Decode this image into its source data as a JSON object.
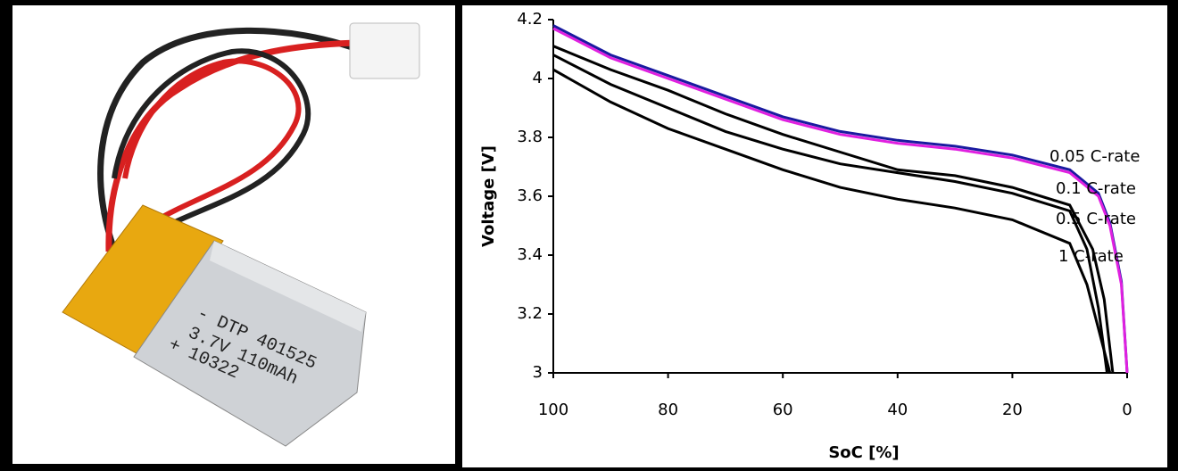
{
  "photo": {
    "battery_label": [
      "- DTP 401525",
      "3.7V 110mAh",
      "+ 10322"
    ]
  },
  "chart_data": {
    "type": "line",
    "y_label": "Voltage [V]",
    "x_label": "SoC [%]",
    "xlim": [
      100,
      0
    ],
    "ylim": [
      3,
      4.2
    ],
    "xticks": [
      100,
      80,
      60,
      40,
      20,
      0
    ],
    "yticks": [
      3,
      3.2,
      3.4,
      3.6,
      3.8,
      4,
      4.2
    ],
    "grid": false,
    "series": [
      {
        "color": "#1a1aa0",
        "x": [
          100,
          90,
          80,
          70,
          60,
          50,
          40,
          30,
          20,
          10,
          5,
          3,
          1,
          0
        ],
        "values": [
          4.18,
          4.08,
          4.01,
          3.94,
          3.87,
          3.82,
          3.79,
          3.77,
          3.74,
          3.69,
          3.61,
          3.51,
          3.31,
          3.0
        ]
      },
      {
        "name": "0.05 C-rate",
        "color": "#e020e0",
        "x": [
          100,
          90,
          80,
          70,
          60,
          50,
          40,
          30,
          20,
          10,
          5,
          3,
          1,
          0
        ],
        "values": [
          4.17,
          4.07,
          4.0,
          3.93,
          3.86,
          3.81,
          3.78,
          3.76,
          3.73,
          3.68,
          3.6,
          3.5,
          3.3,
          3.0
        ]
      },
      {
        "name": "0.1 C-rate",
        "color": "#000000",
        "x": [
          100,
          90,
          80,
          70,
          60,
          50,
          40,
          30,
          20,
          10,
          6,
          4,
          2.5
        ],
        "values": [
          4.11,
          4.03,
          3.96,
          3.88,
          3.81,
          3.75,
          3.69,
          3.67,
          3.63,
          3.57,
          3.42,
          3.25,
          3.0
        ]
      },
      {
        "name": "0.5 C-rate",
        "color": "#000000",
        "x": [
          100,
          90,
          80,
          70,
          60,
          50,
          40,
          30,
          20,
          10,
          7,
          5,
          3.5
        ],
        "values": [
          4.08,
          3.98,
          3.9,
          3.82,
          3.76,
          3.71,
          3.68,
          3.65,
          3.61,
          3.55,
          3.42,
          3.22,
          3.0
        ]
      },
      {
        "name": "1 C-rate",
        "color": "#000000",
        "x": [
          100,
          90,
          80,
          70,
          60,
          50,
          40,
          30,
          20,
          10,
          7,
          5,
          3
        ],
        "values": [
          4.03,
          3.92,
          3.83,
          3.76,
          3.69,
          3.63,
          3.59,
          3.56,
          3.52,
          3.44,
          3.3,
          3.15,
          3.0
        ]
      }
    ]
  }
}
